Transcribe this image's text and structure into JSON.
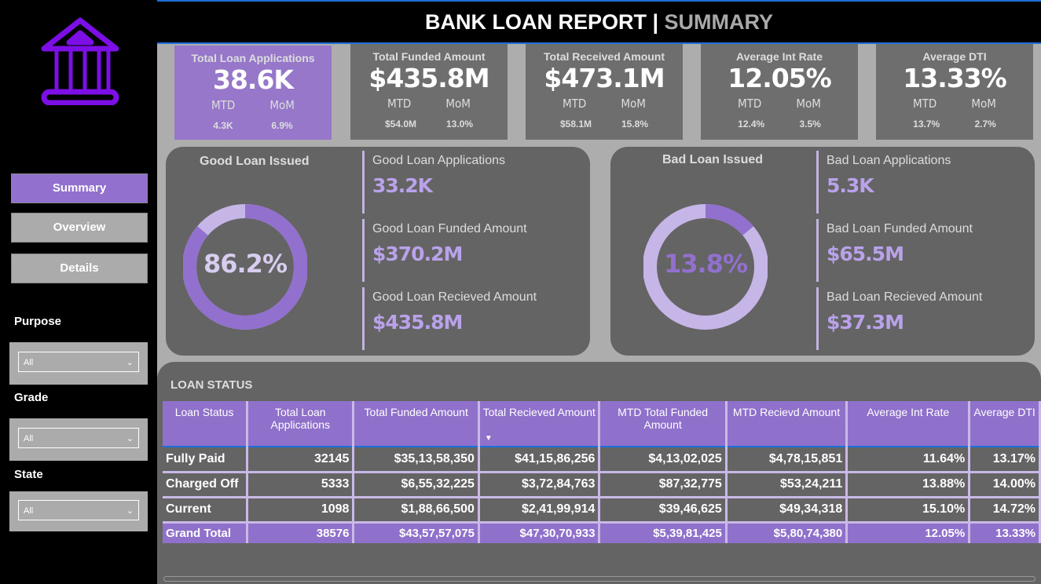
{
  "header": {
    "title": "BANK LOAN REPORT | ",
    "subtitle": "SUMMARY"
  },
  "logo": {
    "icon": "bank-icon",
    "color": "#7B0FE6"
  },
  "nav": [
    {
      "label": "Summary",
      "active": true
    },
    {
      "label": "Overview"
    },
    {
      "label": "Details"
    }
  ],
  "filters": [
    {
      "label": "Purpose",
      "value": "All"
    },
    {
      "label": "Grade",
      "value": "All"
    },
    {
      "label": "State",
      "value": "All"
    }
  ],
  "kpis": [
    {
      "title": "Total Loan Applications",
      "value": "38.6K",
      "mtd_label": "MTD",
      "mom_label": "MoM",
      "mtd": "4.3K",
      "mom": "6.9%"
    },
    {
      "title": "Total Funded Amount",
      "value": "$435.8M",
      "mtd_label": "MTD",
      "mom_label": "MoM",
      "mtd": "$54.0M",
      "mom": "13.0%"
    },
    {
      "title": "Total Received Amount",
      "value": "$473.1M",
      "mtd_label": "MTD",
      "mom_label": "MoM",
      "mtd": "$58.1M",
      "mom": "15.8%"
    },
    {
      "title": "Average Int Rate",
      "value": "12.05%",
      "mtd_label": "MTD",
      "mom_label": "MoM",
      "mtd": "12.4%",
      "mom": "3.5%"
    },
    {
      "title": "Average DTI",
      "value": "13.33%",
      "mtd_label": "MTD",
      "mom_label": "MoM",
      "mtd": "13.7%",
      "mom": "2.7%"
    }
  ],
  "good": {
    "title": "Good Loan Issued",
    "percent": "86.2%",
    "fraction": 0.862,
    "metrics": [
      {
        "label": "Good Loan Applications",
        "value": "33.2K"
      },
      {
        "label": "Good Loan Funded Amount",
        "value": "$370.2M"
      },
      {
        "label": "Good Loan Recieved Amount",
        "value": "$435.8M"
      }
    ]
  },
  "bad": {
    "title": "Bad Loan Issued",
    "percent": "13.8%",
    "fraction": 0.138,
    "metrics": [
      {
        "label": "Bad Loan Applications",
        "value": "5.3K"
      },
      {
        "label": "Bad Loan Funded Amount",
        "value": "$65.5M"
      },
      {
        "label": "Bad Loan Recieved Amount",
        "value": "$37.3M"
      }
    ]
  },
  "colors": {
    "accent": "#8F70CB",
    "donut_light": "#C6B6E8",
    "donut_dark": "#9270CD"
  },
  "table": {
    "title": "LOAN STATUS",
    "columns": [
      "Loan Status",
      "Total Loan Applications",
      "Total Funded Amount",
      "Total Recieved Amount",
      "MTD Total Funded Amount",
      "MTD Recievd Amount",
      "Average Int Rate",
      "Average DTI"
    ],
    "sorted_column": "Total Recieved Amount",
    "rows": [
      [
        "Fully Paid",
        "32145",
        "$35,13,58,350",
        "$41,15,86,256",
        "$4,13,02,025",
        "$4,78,15,851",
        "11.64%",
        "13.17%"
      ],
      [
        "Charged Off",
        "5333",
        "$6,55,32,225",
        "$3,72,84,763",
        "$87,32,775",
        "$53,24,211",
        "13.88%",
        "14.00%"
      ],
      [
        "Current",
        "1098",
        "$1,88,66,500",
        "$2,41,99,914",
        "$39,46,625",
        "$49,34,318",
        "15.10%",
        "14.72%"
      ],
      [
        "Grand Total",
        "38576",
        "$43,57,57,075",
        "$47,30,70,933",
        "$5,39,81,425",
        "$5,80,74,380",
        "12.05%",
        "13.33%"
      ]
    ]
  }
}
